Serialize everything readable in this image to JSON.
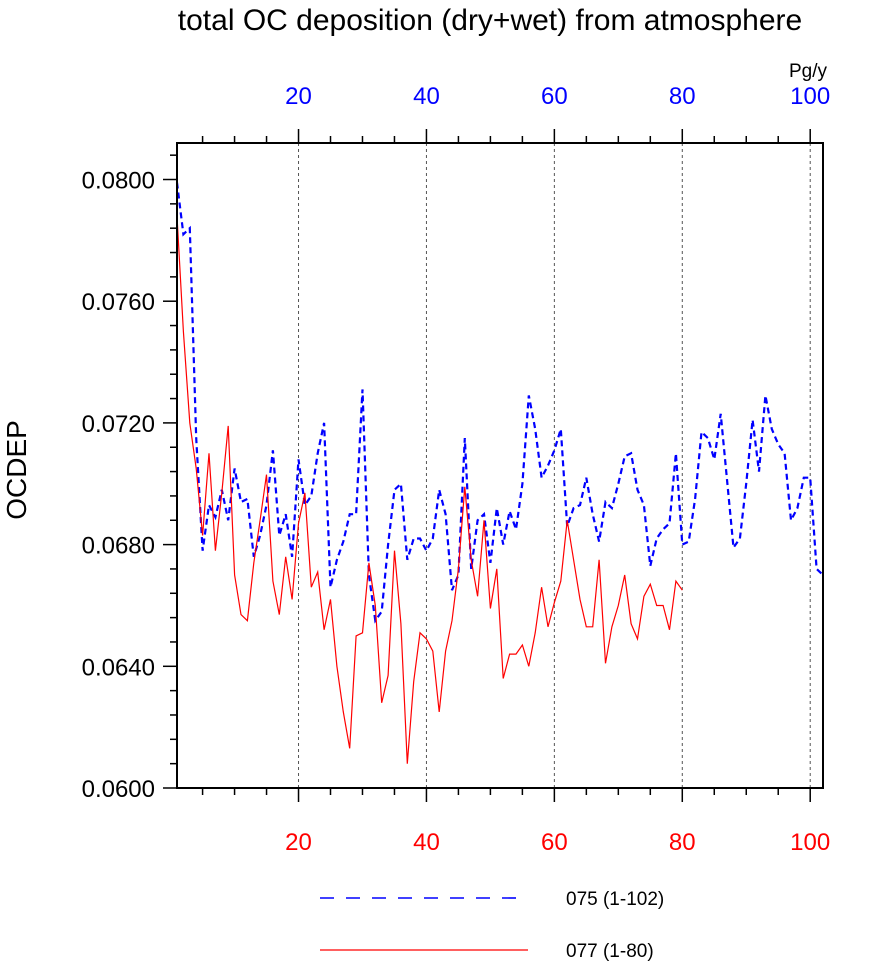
{
  "chart_data": {
    "type": "line",
    "title": "total OC deposition (dry+wet) from atmosphere",
    "ylabel": "OCDEP",
    "units": "Pg/y",
    "xlim": [
      1,
      102
    ],
    "ylim": [
      0.06,
      0.0812
    ],
    "grid": "vertical dashed at top-axis ticks",
    "y_ticks": [
      0.06,
      0.064,
      0.068,
      0.072,
      0.076,
      0.08
    ],
    "y_tick_labels": [
      "0.0600",
      "0.0640",
      "0.0680",
      "0.0720",
      "0.0760",
      "0.0800"
    ],
    "top_axis": {
      "color": "#0000ff",
      "ticks": [
        20,
        40,
        60,
        80,
        100
      ],
      "labels": [
        "20",
        "40",
        "60",
        "80",
        "100"
      ]
    },
    "bottom_axis": {
      "color": "#ff0000",
      "ticks": [
        20,
        40,
        60,
        80,
        100
      ],
      "labels": [
        "20",
        "40",
        "60",
        "80",
        "100"
      ]
    },
    "legend_placement": "bottom",
    "series": [
      {
        "name": "075 (1-102)",
        "color": "#0000ff",
        "dash": "dashed",
        "x_start": 1,
        "values": [
          0.0799,
          0.0782,
          0.0784,
          0.0715,
          0.0678,
          0.0693,
          0.0689,
          0.0698,
          0.0688,
          0.0705,
          0.0694,
          0.0695,
          0.0676,
          0.0683,
          0.0693,
          0.0711,
          0.0683,
          0.069,
          0.0676,
          0.0708,
          0.0693,
          0.0696,
          0.071,
          0.072,
          0.0666,
          0.0675,
          0.0681,
          0.069,
          0.069,
          0.0731,
          0.067,
          0.0655,
          0.0658,
          0.068,
          0.0698,
          0.07,
          0.0675,
          0.0682,
          0.0682,
          0.0678,
          0.0682,
          0.0698,
          0.069,
          0.0665,
          0.067,
          0.0715,
          0.0672,
          0.0688,
          0.069,
          0.0674,
          0.0692,
          0.068,
          0.0691,
          0.0685,
          0.07,
          0.0729,
          0.0718,
          0.0702,
          0.0706,
          0.0711,
          0.0718,
          0.0686,
          0.0692,
          0.0693,
          0.0702,
          0.069,
          0.0681,
          0.0694,
          0.0692,
          0.07,
          0.0709,
          0.071,
          0.0698,
          0.0693,
          0.0673,
          0.0682,
          0.0685,
          0.0687,
          0.071,
          0.068,
          0.0681,
          0.0695,
          0.0717,
          0.0715,
          0.0708,
          0.0723,
          0.0701,
          0.0679,
          0.0682,
          0.07,
          0.0721,
          0.0704,
          0.0729,
          0.0718,
          0.0713,
          0.071,
          0.0688,
          0.0692,
          0.0702,
          0.0702,
          0.0672,
          0.067
        ]
      },
      {
        "name": "077 (1-80)",
        "color": "#ff0000",
        "dash": "solid",
        "x_start": 1,
        "values": [
          0.0788,
          0.075,
          0.072,
          0.0705,
          0.0683,
          0.071,
          0.0678,
          0.0697,
          0.0719,
          0.067,
          0.0657,
          0.0655,
          0.0674,
          0.0688,
          0.0703,
          0.0668,
          0.0657,
          0.0676,
          0.0662,
          0.0687,
          0.0697,
          0.0666,
          0.0671,
          0.0652,
          0.0662,
          0.064,
          0.0625,
          0.0613,
          0.065,
          0.0651,
          0.0674,
          0.066,
          0.0628,
          0.0637,
          0.0678,
          0.0654,
          0.0608,
          0.0635,
          0.0651,
          0.0649,
          0.0645,
          0.0625,
          0.0645,
          0.0655,
          0.0672,
          0.0699,
          0.0675,
          0.0663,
          0.0688,
          0.0659,
          0.0672,
          0.0636,
          0.0644,
          0.0644,
          0.0647,
          0.064,
          0.0651,
          0.0666,
          0.0653,
          0.0661,
          0.0668,
          0.0688,
          0.0675,
          0.0662,
          0.0653,
          0.0653,
          0.0675,
          0.0641,
          0.0653,
          0.066,
          0.067,
          0.0654,
          0.0649,
          0.0663,
          0.0667,
          0.066,
          0.066,
          0.0652,
          0.0668,
          0.0665
        ]
      }
    ]
  }
}
